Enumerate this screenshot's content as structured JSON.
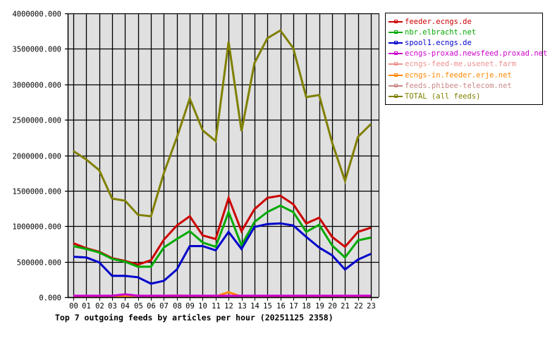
{
  "caption": "Top 7 outgoing feeds by articles per hour (20251125 2358)",
  "chart_data": {
    "type": "line",
    "title": "Top 7 outgoing feeds by articles per hour (20251125 2358)",
    "xlabel": "",
    "ylabel": "",
    "ylim": [
      0,
      4000000
    ],
    "yticks": [
      "0.000",
      "500000.000",
      "1000000.000",
      "1500000.000",
      "2000000.000",
      "2500000.000",
      "3000000.000",
      "3500000.000",
      "4000000.000"
    ],
    "grid": true,
    "legend_position": "right",
    "categories": [
      "00",
      "01",
      "02",
      "03",
      "04",
      "05",
      "06",
      "07",
      "08",
      "09",
      "10",
      "11",
      "12",
      "13",
      "14",
      "15",
      "16",
      "17",
      "18",
      "19",
      "20",
      "21",
      "22",
      "23"
    ],
    "series": [
      {
        "name": "feeder.ecngs.de",
        "color": "#cc0000",
        "values": [
          760000,
          690000,
          640000,
          550000,
          510000,
          460000,
          520000,
          810000,
          1010000,
          1140000,
          870000,
          820000,
          1400000,
          930000,
          1240000,
          1400000,
          1430000,
          1310000,
          1040000,
          1120000,
          850000,
          710000,
          920000,
          980000
        ]
      },
      {
        "name": "nbr.elbracht.net",
        "color": "#00aa00",
        "values": [
          720000,
          680000,
          630000,
          540000,
          500000,
          430000,
          430000,
          700000,
          820000,
          930000,
          770000,
          710000,
          1200000,
          730000,
          1060000,
          1200000,
          1290000,
          1200000,
          920000,
          1020000,
          730000,
          560000,
          800000,
          840000
        ]
      },
      {
        "name": "spool1.ecngs.de",
        "color": "#0000cc",
        "values": [
          570000,
          560000,
          490000,
          300000,
          300000,
          280000,
          190000,
          230000,
          390000,
          720000,
          720000,
          660000,
          920000,
          680000,
          990000,
          1030000,
          1040000,
          1010000,
          850000,
          700000,
          590000,
          390000,
          530000,
          610000
        ]
      },
      {
        "name": "ecngs-proxad.newsfeed.proxad.net",
        "color": "#cc00cc",
        "values": [
          20000,
          20000,
          20000,
          20000,
          40000,
          20000,
          20000,
          20000,
          20000,
          20000,
          20000,
          20000,
          20000,
          20000,
          20000,
          20000,
          20000,
          20000,
          20000,
          20000,
          20000,
          20000,
          20000,
          20000
        ]
      },
      {
        "name": "ecngs-feed-me.usenet.farm",
        "color": "#f09090",
        "values": [
          20000,
          20000,
          20000,
          20000,
          20000,
          20000,
          20000,
          20000,
          25000,
          20000,
          20000,
          20000,
          20000,
          20000,
          20000,
          20000,
          20000,
          20000,
          20000,
          20000,
          20000,
          20000,
          20000,
          20000
        ]
      },
      {
        "name": "ecngs-in.feeder.erje.net",
        "color": "#ff8800",
        "values": [
          10000,
          10000,
          10000,
          10000,
          20000,
          20000,
          10000,
          10000,
          10000,
          10000,
          10000,
          10000,
          70000,
          10000,
          10000,
          10000,
          10000,
          10000,
          10000,
          10000,
          10000,
          10000,
          10000,
          10000
        ]
      },
      {
        "name": "feeds.phibee-telecom.net",
        "color": "#cc8888",
        "values": [
          10000,
          10000,
          10000,
          10000,
          10000,
          10000,
          10000,
          10000,
          10000,
          10000,
          10000,
          10000,
          10000,
          10000,
          10000,
          10000,
          10000,
          10000,
          10000,
          10000,
          10000,
          10000,
          10000,
          10000
        ]
      },
      {
        "name": "TOTAL (all feeds)",
        "color": "#808000",
        "values": [
          2060000,
          1940000,
          1790000,
          1390000,
          1360000,
          1160000,
          1140000,
          1750000,
          2250000,
          2800000,
          2350000,
          2200000,
          3600000,
          2340000,
          3300000,
          3650000,
          3760000,
          3510000,
          2820000,
          2850000,
          2180000,
          1640000,
          2260000,
          2440000
        ]
      }
    ]
  },
  "legend": [
    {
      "label": "feeder.ecngs.de",
      "color": "#cc0000"
    },
    {
      "label": "nbr.elbracht.net",
      "color": "#00aa00"
    },
    {
      "label": "spool1.ecngs.de",
      "color": "#0000cc"
    },
    {
      "label": "ecngs-proxad.newsfeed.proxad.net",
      "color": "#cc00cc"
    },
    {
      "label": "ecngs-feed-me.usenet.farm",
      "color": "#f09090"
    },
    {
      "label": "ecngs-in.feeder.erje.net",
      "color": "#ff8800"
    },
    {
      "label": "feeds.phibee-telecom.net",
      "color": "#cc8888"
    },
    {
      "label": "TOTAL (all feeds)",
      "color": "#808000"
    }
  ],
  "colors": {
    "plot_bg": "#e0e0e0",
    "grid": "#000000",
    "axis": "#000000"
  }
}
